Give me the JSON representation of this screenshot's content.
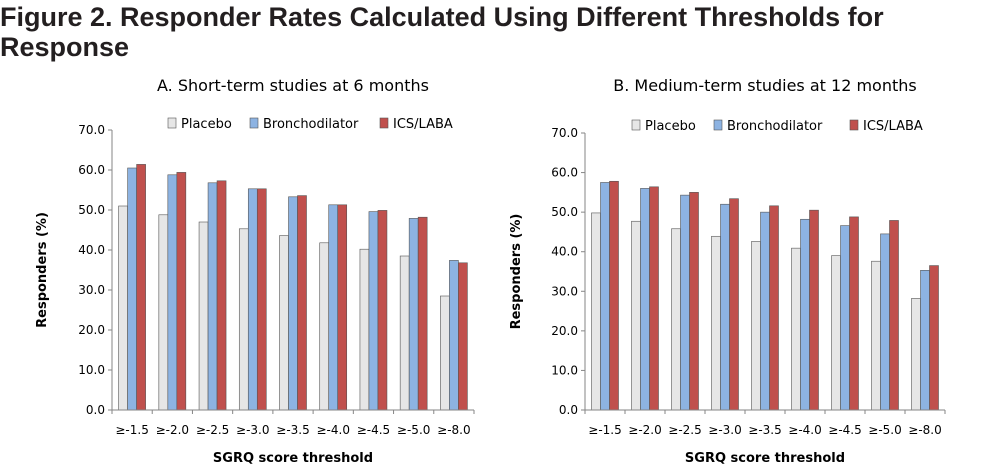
{
  "figure_title": "Figure 2. Responder Rates Calculated Using Different Thresholds for Response",
  "colors": {
    "Placebo": "#e6e6e6",
    "Bronchodilator": "#8db3e2",
    "ICS/LABA": "#c0504d"
  },
  "chart_data": [
    {
      "type": "bar",
      "title": "A. Short-term studies at 6 months",
      "xlabel": "SGRQ score threshold",
      "ylabel": "Responders (%)",
      "ylim": [
        0,
        70
      ],
      "yticks": [
        "0.0",
        "10.0",
        "20.0",
        "30.0",
        "40.0",
        "50.0",
        "60.0",
        "70.0"
      ],
      "legend_position": "top",
      "grid": false,
      "categories": [
        "≥-1.5",
        "≥-2.0",
        "≥-2.5",
        "≥-3.0",
        "≥-3.5",
        "≥-4.0",
        "≥-4.5",
        "≥-5.0",
        "≥-8.0"
      ],
      "series": [
        {
          "name": "Placebo",
          "values": [
            51.0,
            48.8,
            47.0,
            45.3,
            43.6,
            41.8,
            40.2,
            38.5,
            28.5
          ]
        },
        {
          "name": "Bronchodilator",
          "values": [
            60.5,
            58.8,
            56.8,
            55.3,
            53.3,
            51.3,
            49.6,
            47.9,
            37.4
          ]
        },
        {
          "name": "ICS/LABA",
          "values": [
            61.4,
            59.4,
            57.3,
            55.3,
            53.6,
            51.3,
            49.9,
            48.2,
            36.8
          ]
        }
      ]
    },
    {
      "type": "bar",
      "title": "B. Medium-term studies at 12 months",
      "xlabel": "SGRQ score threshold",
      "ylabel": "Responders (%)",
      "ylim": [
        0,
        70
      ],
      "yticks": [
        "0.0",
        "10.0",
        "20.0",
        "30.0",
        "40.0",
        "50.0",
        "60.0",
        "70.0"
      ],
      "legend_position": "top",
      "grid": false,
      "categories": [
        "≥-1.5",
        "≥-2.0",
        "≥-2.5",
        "≥-3.0",
        "≥-3.5",
        "≥-4.0",
        "≥-4.5",
        "≥-5.0",
        "≥-8.0"
      ],
      "series": [
        {
          "name": "Placebo",
          "values": [
            49.8,
            47.7,
            45.8,
            43.9,
            42.6,
            40.9,
            39.0,
            37.6,
            28.2
          ]
        },
        {
          "name": "Bronchodilator",
          "values": [
            57.5,
            56.0,
            54.3,
            52.0,
            50.0,
            48.2,
            46.6,
            44.5,
            35.3
          ]
        },
        {
          "name": "ICS/LABA",
          "values": [
            57.8,
            56.4,
            55.0,
            53.4,
            51.6,
            50.5,
            48.8,
            47.9,
            36.5
          ]
        }
      ]
    }
  ]
}
